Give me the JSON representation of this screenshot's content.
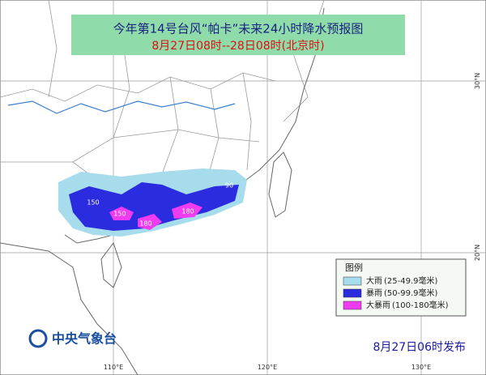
{
  "header": {
    "title": "今年第14号台风“帕卡”未来24小时降水预报图",
    "subtitle": "8月27日08时--28日08时(北京时)"
  },
  "legend": {
    "title": "图例",
    "items": [
      {
        "label": "大雨",
        "range": "(25-49.9毫米)",
        "color": "#a6dcec"
      },
      {
        "label": "暴雨",
        "range": "(50-99.9毫米)",
        "color": "#2b2be0"
      },
      {
        "label": "大暴雨",
        "range": "(100-180毫米)",
        "color": "#f03cf0"
      }
    ]
  },
  "contour_labels": [
    150,
    150,
    180,
    180,
    90
  ],
  "graticule": {
    "lon_labels": [
      "110°E",
      "120°E",
      "130°E"
    ],
    "lat_labels": [
      "30°N",
      "20°N"
    ]
  },
  "footer": {
    "agency": "中央气象台",
    "issued": "8月27日06时发布"
  }
}
